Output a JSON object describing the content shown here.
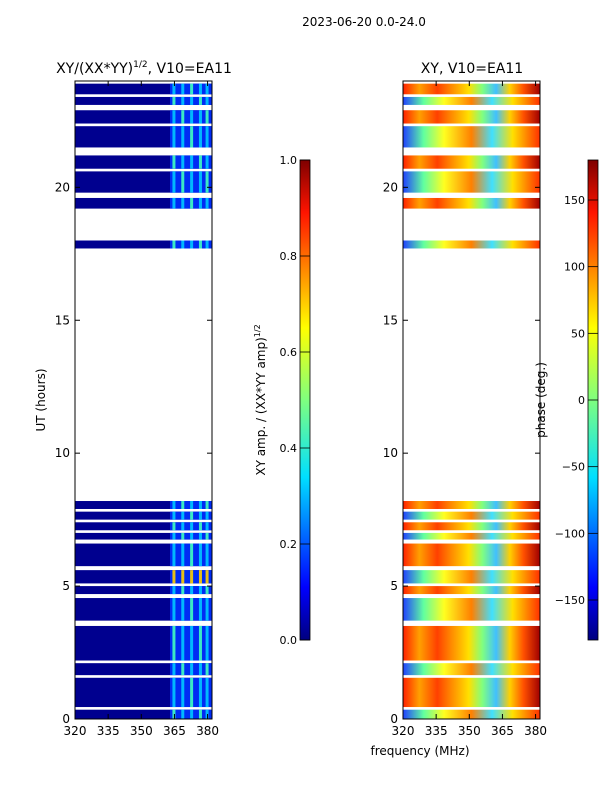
{
  "chart_data": [
    {
      "type": "heatmap",
      "suptitle": "2023-06-20 0.0-24.0",
      "title_main": "XY/(XX*YY)",
      "title_exp": "1/2",
      "title_suffix": ", V10=EA11",
      "xlabel": "frequency (MHz)",
      "ylabel": "UT (hours)",
      "xlim": [
        320,
        382
      ],
      "ylim": [
        0,
        24
      ],
      "xticks": [
        320,
        335,
        350,
        365,
        380
      ],
      "yticks": [
        0,
        5,
        10,
        15,
        20
      ],
      "colorbar": {
        "label_main": "XY amp. / (XX*YY amp)",
        "label_exp": "1/2",
        "range": [
          0.0,
          1.0
        ],
        "ticks": [
          "0.0",
          "0.2",
          "0.4",
          "0.6",
          "0.8",
          "1.0"
        ]
      },
      "data_bands_ut": [
        [
          0.0,
          0.35
        ],
        [
          0.45,
          1.55
        ],
        [
          1.65,
          2.1
        ],
        [
          2.2,
          3.5
        ],
        [
          3.7,
          4.55
        ],
        [
          4.7,
          5.0
        ],
        [
          5.1,
          5.6
        ],
        [
          5.75,
          6.6
        ],
        [
          6.75,
          7.0
        ],
        [
          7.1,
          7.4
        ],
        [
          7.5,
          7.8
        ],
        [
          7.9,
          8.2
        ],
        [
          17.7,
          18.0
        ],
        [
          19.2,
          19.6
        ],
        [
          19.8,
          20.6
        ],
        [
          20.7,
          21.2
        ],
        [
          21.5,
          22.3
        ],
        [
          22.4,
          22.9
        ],
        [
          23.1,
          23.4
        ],
        [
          23.5,
          23.9
        ]
      ],
      "bright_columns_mhz": [
        365,
        369,
        373,
        377,
        380
      ]
    },
    {
      "type": "heatmap",
      "title": "XY, V10=EA11",
      "xlabel": "frequency (MHz)",
      "ylabel": "",
      "xlim": [
        320,
        382
      ],
      "ylim": [
        0,
        24
      ],
      "xticks": [
        320,
        335,
        350,
        365,
        380
      ],
      "yticks": [
        0,
        5,
        10,
        15,
        20
      ],
      "colorbar": {
        "label": "phase (deg.)",
        "range": [
          -180,
          180
        ],
        "ticks": [
          "−150",
          "−100",
          "−50",
          "0",
          "50",
          "100",
          "150"
        ]
      }
    }
  ]
}
